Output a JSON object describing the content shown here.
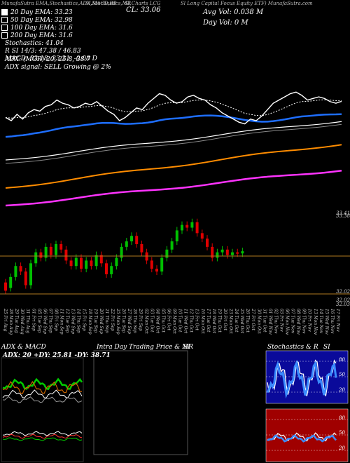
{
  "header": {
    "top_left": "MunafaSutra EMA,Stochastics,ADX,MACD,BB",
    "top_mid1": "SI,Stochastics,MR",
    "top_mid2": "SI,Charts LCG",
    "top_right": "Sl Long Capital Focus Equity ETF) MunafaSutra.com",
    "cl": "CL: 33.06",
    "avg_vol": "Avg Vol: 0.038  M",
    "day_vol": "Day Vol: 0   M"
  },
  "legend": [
    {
      "label": "20 Day EMA: 33.23",
      "color": "#ffffff"
    },
    {
      "label": "50 Day EMA: 32.98",
      "color": "#000000"
    },
    {
      "label": "100 Day EMA: 31.6",
      "color": "#000000"
    },
    {
      "label": "200 Day EMA: 31.6",
      "color": "#000000"
    }
  ],
  "info": {
    "stochastics": "Stochastics: 41.04",
    "si": "R             SI 14/3: 47.38 / 46.83",
    "macd": "MACD: 33.18, 33.21, -0.08  D",
    "adx": "ADX:                    (MGR) 20, 25.8, 38.7",
    "adx_signal": "ADX  signal: SELL  Growing @ 2%"
  },
  "right_labels": {
    "p1": "33.41",
    "p2": "33.38",
    "p3": "32.02",
    "p4": "32.02",
    "p5": "32.03"
  },
  "dates": [
    "25 Fri Aug",
    "28 Mon Aug",
    "29 Tue Aug",
    "30 Wed Aug",
    "31 Thu Aug",
    "01 Fri Sep",
    "05 Tue Sep",
    "06 Wed Sep",
    "07 Thu Sep",
    "08 Fri Sep",
    "11 Mon Sep",
    "12 Tue Sep",
    "13 Wed Sep",
    "14 Thu Sep",
    "15 Fri Sep",
    "18 Mon Sep",
    "19 Tue Sep",
    "20 Wed Sep",
    "21 Thu Sep",
    "22 Fri Sep",
    "25 Mon Sep",
    "26 Tue Sep",
    "27 Wed Sep",
    "28 Thu Sep",
    "29 Fri Sep",
    "02 Mon Oct",
    "03 Tue Oct",
    "04 Wed Oct",
    "05 Thu Oct",
    "06 Fri Oct",
    "09 Mon Oct",
    "10 Tue Oct",
    "11 Wed Oct",
    "12 Thu Oct",
    "13 Fri Oct",
    "16 Mon Oct",
    "17 Tue Oct",
    "18 Wed Oct",
    "19 Thu Oct",
    "20 Fri Oct",
    "23 Mon Oct",
    "24 Tue Oct",
    "25 Wed Oct",
    "26 Thu Oct",
    "27 Fri Oct",
    "30 Mon Oct",
    "31 Tue Oct",
    "01 Wed Nov",
    "02 Thu Nov",
    "03 Fri Nov",
    "06 Mon Nov",
    "07 Tue Nov",
    "08 Wed Nov",
    "09 Thu Nov",
    "10 Fri Nov",
    "13 Mon Nov",
    "14 Tue Nov",
    "15 Wed Nov",
    "16 Thu Nov",
    "17 Fri Nov"
  ],
  "panels": {
    "adx_title": "ADX  & MACD",
    "adx_values": "ADX: 20  +DY: 25.81  -DY: 38.71",
    "intra_title": "Intra  Day Trading Price  & MR",
    "intra_si": "SI",
    "stoch_title": "Stochastics & R",
    "stoch_si": "SI",
    "stoch_ticks": [
      "80",
      "50",
      "20"
    ],
    "mr_ticks": [
      "80",
      "50",
      "20"
    ]
  },
  "colors": {
    "up": "#00c000",
    "down": "#e00000",
    "ema20": "#ffffff",
    "blue": "#1e6eff",
    "orange": "#ff8c00",
    "magenta": "#ff33ff",
    "price_line": "#ffffff",
    "stoch_bg": "#0a0a9a",
    "mr_bg": "#a00000"
  },
  "chart_data": {
    "type": "line",
    "title": "",
    "ylim": [
      31.5,
      33.6
    ],
    "series": [
      {
        "name": "",
        "values": [
          32.55,
          32.45,
          32.65,
          32.5,
          32.7,
          32.8,
          32.75,
          32.9,
          32.95,
          33.1,
          33.0,
          32.95,
          32.85,
          32.9,
          33.0,
          32.95,
          33.05,
          32.9,
          32.75,
          32.65,
          32.45,
          32.55,
          32.7,
          32.85,
          32.8,
          33.0,
          33.15,
          33.3,
          33.25,
          33.1,
          33.0,
          33.05,
          33.2,
          33.25,
          33.15,
          33.1,
          32.95,
          32.85,
          32.7,
          32.6,
          32.5,
          32.4,
          32.35,
          32.5,
          32.45,
          32.6,
          32.8,
          33.0,
          33.1,
          33.2,
          33.3,
          33.35,
          33.25,
          33.1,
          33.15,
          33.2,
          33.15,
          33.05,
          33.0,
          33.06
        ]
      }
    ],
    "candles": [
      {
        "o": 32.25,
        "c": 32.1
      },
      {
        "o": 32.15,
        "c": 32.35
      },
      {
        "o": 32.35,
        "c": 32.55
      },
      {
        "o": 32.55,
        "c": 32.45
      },
      {
        "o": 32.45,
        "c": 32.2
      },
      {
        "o": 32.2,
        "c": 32.6
      },
      {
        "o": 32.6,
        "c": 32.8
      },
      {
        "o": 32.8,
        "c": 32.7
      },
      {
        "o": 32.7,
        "c": 32.9
      },
      {
        "o": 32.9,
        "c": 32.75
      },
      {
        "o": 32.75,
        "c": 32.95
      },
      {
        "o": 32.95,
        "c": 32.85
      },
      {
        "o": 32.85,
        "c": 32.65
      },
      {
        "o": 32.65,
        "c": 32.55
      },
      {
        "o": 32.55,
        "c": 32.7
      },
      {
        "o": 32.7,
        "c": 32.5
      },
      {
        "o": 32.5,
        "c": 32.65
      },
      {
        "o": 32.65,
        "c": 32.55
      },
      {
        "o": 32.55,
        "c": 32.75
      },
      {
        "o": 32.75,
        "c": 32.6
      },
      {
        "o": 32.6,
        "c": 32.4
      },
      {
        "o": 32.4,
        "c": 32.55
      },
      {
        "o": 32.55,
        "c": 32.7
      },
      {
        "o": 32.7,
        "c": 32.9
      },
      {
        "o": 32.9,
        "c": 33.0
      },
      {
        "o": 33.0,
        "c": 33.1
      },
      {
        "o": 33.1,
        "c": 32.95
      },
      {
        "o": 32.95,
        "c": 32.8
      },
      {
        "o": 32.8,
        "c": 32.65
      },
      {
        "o": 32.65,
        "c": 32.5
      },
      {
        "o": 32.5,
        "c": 32.45
      },
      {
        "o": 32.45,
        "c": 32.7
      },
      {
        "o": 32.7,
        "c": 32.85
      },
      {
        "o": 32.85,
        "c": 33.0
      },
      {
        "o": 33.0,
        "c": 33.2
      },
      {
        "o": 33.2,
        "c": 33.3
      },
      {
        "o": 33.3,
        "c": 33.25
      },
      {
        "o": 33.25,
        "c": 33.35
      },
      {
        "o": 33.35,
        "c": 33.15
      },
      {
        "o": 33.15,
        "c": 33.05
      },
      {
        "o": 33.05,
        "c": 32.9
      },
      {
        "o": 32.9,
        "c": 32.7
      },
      {
        "o": 32.7,
        "c": 32.8
      },
      {
        "o": 32.8,
        "c": 32.85
      },
      {
        "o": 32.85,
        "c": 32.75
      },
      {
        "o": 32.75,
        "c": 32.8
      },
      {
        "o": 32.8,
        "c": 32.78
      },
      {
        "o": 32.78,
        "c": 32.82
      }
    ]
  }
}
